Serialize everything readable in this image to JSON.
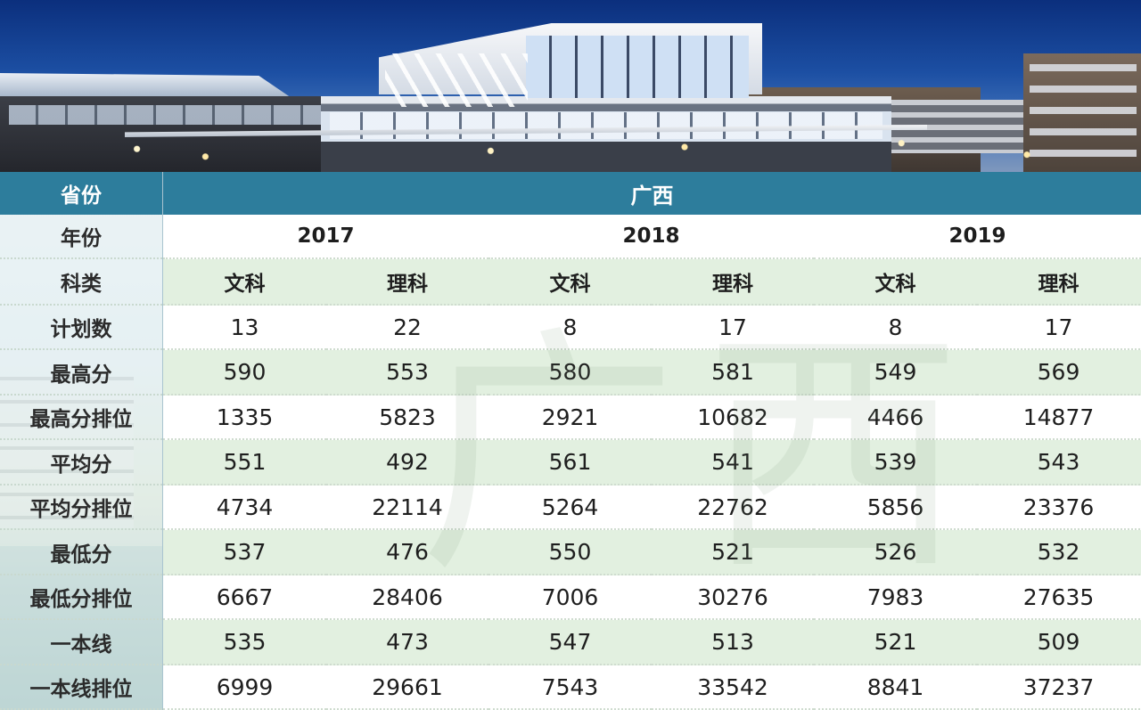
{
  "table": {
    "province_label": "省份",
    "province_value": "广西",
    "year_label": "年份",
    "years": [
      "2017",
      "2018",
      "2019"
    ],
    "subject_label": "科类",
    "subjects": [
      "文科",
      "理科",
      "文科",
      "理科",
      "文科",
      "理科"
    ],
    "rows": [
      {
        "label": "计划数",
        "values": [
          "13",
          "22",
          "8",
          "17",
          "8",
          "17"
        ]
      },
      {
        "label": "最高分",
        "values": [
          "590",
          "553",
          "580",
          "581",
          "549",
          "569"
        ]
      },
      {
        "label": "最高分排位",
        "values": [
          "1335",
          "5823",
          "2921",
          "10682",
          "4466",
          "14877"
        ]
      },
      {
        "label": "平均分",
        "values": [
          "551",
          "492",
          "561",
          "541",
          "539",
          "543"
        ]
      },
      {
        "label": "平均分排位",
        "values": [
          "4734",
          "22114",
          "5264",
          "22762",
          "5856",
          "23376"
        ]
      },
      {
        "label": "最低分",
        "values": [
          "537",
          "476",
          "550",
          "521",
          "526",
          "532"
        ]
      },
      {
        "label": "最低分排位",
        "values": [
          "6667",
          "28406",
          "7006",
          "30276",
          "7983",
          "27635"
        ]
      },
      {
        "label": "一本线",
        "values": [
          "535",
          "473",
          "547",
          "513",
          "521",
          "509"
        ]
      },
      {
        "label": "一本线排位",
        "values": [
          "6999",
          "29661",
          "7543",
          "33542",
          "8841",
          "37237"
        ]
      }
    ]
  },
  "watermark": "广西",
  "colors": {
    "header_bar": "#2d7d9c",
    "row_green": "#e2f0e0",
    "row_white": "#ffffff"
  }
}
